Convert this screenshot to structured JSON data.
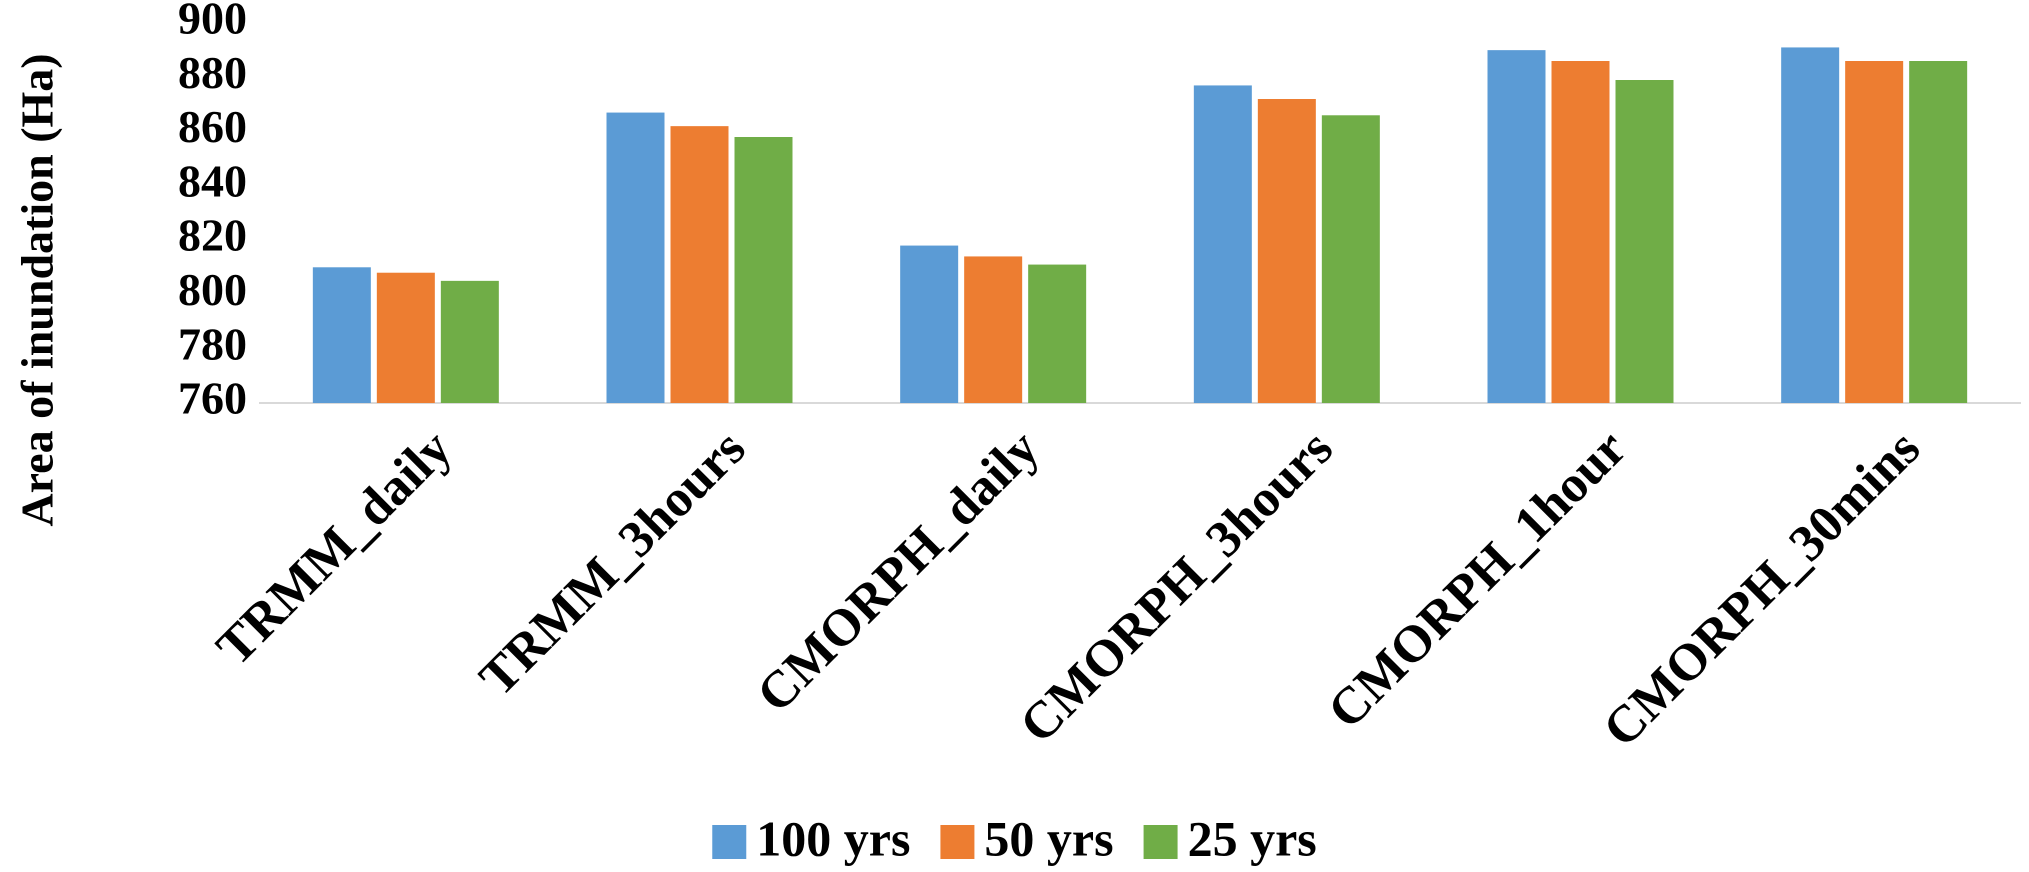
{
  "chart_data": {
    "type": "bar",
    "y_label": "Area of inundation  (Ha)",
    "categories": [
      "TRMM_daily",
      "TRMM_3hours",
      "CMORPH_daily",
      "CMORPH_3hours",
      "CMORPH_1hour",
      "CMORPH_30mins"
    ],
    "series": [
      {
        "name": "100 yrs",
        "color": "#5b9bd5",
        "values": [
          810,
          867,
          818,
          877,
          890,
          891
        ]
      },
      {
        "name": "50 yrs",
        "color": "#ed7d31",
        "values": [
          808,
          862,
          814,
          872,
          886,
          886
        ]
      },
      {
        "name": "25 yrs",
        "color": "#70ad47",
        "values": [
          805,
          858,
          811,
          866,
          879,
          886
        ]
      }
    ],
    "ylim": [
      760,
      900
    ],
    "yticks": [
      760,
      780,
      800,
      820,
      840,
      860,
      880,
      900
    ],
    "grid": false,
    "legend": "bottom"
  }
}
